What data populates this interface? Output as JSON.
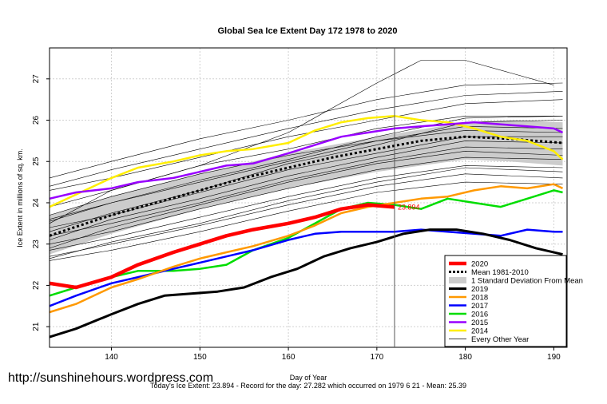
{
  "chart_data": {
    "type": "line",
    "title": "Global Sea Ice Extent Day 172 1978 to 2020",
    "xlabel": "Day of Year",
    "ylabel": "Ice Extent in millions of sq. km.",
    "xlim": [
      133,
      191.5
    ],
    "ylim": [
      20.5,
      27.75
    ],
    "x_ticks": [
      140,
      150,
      160,
      170,
      180,
      190
    ],
    "y_ticks": [
      21,
      22,
      23,
      24,
      25,
      26,
      27
    ],
    "grid": true,
    "vline_x": 172,
    "legend_position": "bottom-right",
    "current_label": "23.894",
    "watermark": "http://sunshinehours.wordpress.com",
    "footer": "Today's Ice Extent: 23.894  - Record for the day: 27.282 which occurred on 1979 6 21  - Mean: 25.39",
    "colors": {
      "2020": "#ff0000",
      "mean": "#000000",
      "band": "#cccccc",
      "2019": "#000000",
      "2018": "#ff9900",
      "2017": "#0000ff",
      "2016": "#00dd00",
      "2015": "#9900ff",
      "2014": "#ffee00",
      "other": "#000000"
    },
    "legend": [
      "2020",
      "Mean 1981-2010",
      "1 Standard Deviation From Mean",
      "2019",
      "2018",
      "2017",
      "2016",
      "2015",
      "2014",
      "Every Other Year"
    ],
    "std_band": {
      "x": [
        133,
        140,
        150,
        160,
        170,
        180,
        185,
        191
      ],
      "lower": [
        22.75,
        23.25,
        23.85,
        24.35,
        24.75,
        25.05,
        25.0,
        24.9
      ],
      "upper": [
        23.7,
        24.15,
        24.7,
        25.2,
        25.6,
        25.95,
        26.0,
        25.95
      ]
    },
    "mean": {
      "x": [
        133,
        135,
        140,
        145,
        150,
        155,
        160,
        165,
        170,
        175,
        180,
        185,
        191
      ],
      "y": [
        23.2,
        23.35,
        23.7,
        24.0,
        24.3,
        24.6,
        24.85,
        25.1,
        25.3,
        25.5,
        25.6,
        25.55,
        25.45
      ]
    },
    "series": [
      {
        "name": "2020",
        "key": "2020",
        "width": 4.5,
        "x": [
          133,
          136,
          140,
          143,
          147,
          150,
          153,
          156,
          160,
          163,
          166,
          169,
          172
        ],
        "y": [
          22.05,
          21.95,
          22.2,
          22.5,
          22.8,
          23.0,
          23.2,
          23.35,
          23.5,
          23.65,
          23.85,
          23.95,
          23.894
        ]
      },
      {
        "name": "2019",
        "key": "2019",
        "width": 3,
        "x": [
          133,
          136,
          140,
          143,
          146,
          149,
          152,
          155,
          158,
          161,
          164,
          167,
          170,
          173,
          176,
          179,
          182,
          185,
          188,
          191
        ],
        "y": [
          20.75,
          20.95,
          21.3,
          21.55,
          21.75,
          21.8,
          21.85,
          21.95,
          22.2,
          22.4,
          22.7,
          22.9,
          23.05,
          23.25,
          23.35,
          23.35,
          23.25,
          23.1,
          22.9,
          22.75
        ]
      },
      {
        "name": "2018",
        "key": "2018",
        "width": 2.5,
        "x": [
          133,
          136,
          140,
          143,
          147,
          150,
          153,
          156,
          160,
          163,
          166,
          169,
          172,
          175,
          178,
          181,
          184,
          187,
          190,
          191
        ],
        "y": [
          21.35,
          21.55,
          21.95,
          22.15,
          22.45,
          22.65,
          22.8,
          22.95,
          23.2,
          23.45,
          23.75,
          23.9,
          24.0,
          24.1,
          24.15,
          24.3,
          24.4,
          24.35,
          24.45,
          24.35
        ]
      },
      {
        "name": "2017",
        "key": "2017",
        "width": 2.5,
        "x": [
          133,
          136,
          140,
          143,
          147,
          150,
          153,
          156,
          160,
          163,
          166,
          169,
          172,
          175,
          178,
          181,
          184,
          187,
          190,
          191
        ],
        "y": [
          21.5,
          21.75,
          22.05,
          22.2,
          22.4,
          22.55,
          22.7,
          22.85,
          23.1,
          23.25,
          23.3,
          23.3,
          23.3,
          23.35,
          23.3,
          23.25,
          23.2,
          23.35,
          23.3,
          23.3
        ]
      },
      {
        "name": "2016",
        "key": "2016",
        "width": 2.5,
        "x": [
          133,
          136,
          140,
          143,
          147,
          150,
          153,
          156,
          160,
          163,
          166,
          169,
          172,
          175,
          178,
          181,
          184,
          187,
          190,
          191
        ],
        "y": [
          21.75,
          21.95,
          22.2,
          22.35,
          22.35,
          22.4,
          22.5,
          22.85,
          23.15,
          23.5,
          23.85,
          24.0,
          23.95,
          23.85,
          24.1,
          24.0,
          23.9,
          24.1,
          24.3,
          24.25
        ]
      },
      {
        "name": "2015",
        "key": "2015",
        "width": 2.5,
        "x": [
          133,
          136,
          140,
          143,
          147,
          150,
          153,
          156,
          160,
          163,
          166,
          169,
          172,
          175,
          178,
          181,
          184,
          187,
          190,
          191
        ],
        "y": [
          24.1,
          24.25,
          24.35,
          24.5,
          24.6,
          24.75,
          24.9,
          24.95,
          25.2,
          25.4,
          25.6,
          25.7,
          25.8,
          25.85,
          25.9,
          25.95,
          25.9,
          25.85,
          25.8,
          25.7
        ]
      },
      {
        "name": "2014",
        "key": "2014",
        "width": 2.5,
        "x": [
          133,
          136,
          140,
          143,
          147,
          150,
          153,
          156,
          160,
          163,
          166,
          169,
          172,
          175,
          178,
          181,
          184,
          187,
          190,
          191
        ],
        "y": [
          23.9,
          24.2,
          24.6,
          24.85,
          25.0,
          25.15,
          25.25,
          25.3,
          25.45,
          25.75,
          25.95,
          26.05,
          26.1,
          26.0,
          25.95,
          25.8,
          25.6,
          25.5,
          25.25,
          25.05
        ]
      }
    ],
    "other_years": [
      {
        "x": [
          133,
          140,
          150,
          160,
          170,
          175,
          180,
          185,
          190
        ],
        "y": [
          23.5,
          24.3,
          24.9,
          25.7,
          26.9,
          27.45,
          27.45,
          27.15,
          26.85
        ]
      },
      {
        "x": [
          133,
          140,
          150,
          160,
          170,
          180,
          191
        ],
        "y": [
          24.6,
          25.0,
          25.55,
          26.0,
          26.5,
          26.85,
          26.9
        ]
      },
      {
        "x": [
          133,
          140,
          150,
          160,
          170,
          180,
          191
        ],
        "y": [
          24.3,
          24.6,
          25.1,
          25.6,
          26.0,
          26.4,
          26.5
        ]
      },
      {
        "x": [
          133,
          140,
          150,
          160,
          170,
          180,
          191
        ],
        "y": [
          23.9,
          24.3,
          24.9,
          25.3,
          25.8,
          26.1,
          26.1
        ]
      },
      {
        "x": [
          133,
          140,
          150,
          160,
          170,
          180,
          191
        ],
        "y": [
          23.6,
          24.0,
          24.5,
          25.0,
          25.5,
          25.85,
          25.8
        ]
      },
      {
        "x": [
          133,
          140,
          150,
          160,
          170,
          180,
          191
        ],
        "y": [
          23.4,
          23.7,
          24.25,
          24.8,
          25.2,
          25.6,
          25.6
        ]
      },
      {
        "x": [
          133,
          140,
          150,
          160,
          170,
          180,
          191
        ],
        "y": [
          23.2,
          23.5,
          24.0,
          24.55,
          25.0,
          25.35,
          25.3
        ]
      },
      {
        "x": [
          133,
          140,
          150,
          160,
          170,
          180,
          191
        ],
        "y": [
          23.0,
          23.3,
          23.85,
          24.35,
          24.8,
          25.1,
          25.05
        ]
      },
      {
        "x": [
          133,
          140,
          150,
          160,
          170,
          180,
          191
        ],
        "y": [
          22.85,
          23.15,
          23.65,
          24.15,
          24.6,
          24.9,
          24.85
        ]
      },
      {
        "x": [
          133,
          140,
          150,
          160,
          170,
          180,
          191
        ],
        "y": [
          22.7,
          23.0,
          23.45,
          23.95,
          24.4,
          24.7,
          24.6
        ]
      },
      {
        "x": [
          133,
          140,
          150,
          160,
          170,
          180,
          191
        ],
        "y": [
          22.6,
          22.85,
          23.3,
          23.8,
          24.25,
          24.5,
          24.45
        ]
      },
      {
        "x": [
          133,
          140,
          150,
          160,
          170,
          180,
          191
        ],
        "y": [
          23.3,
          23.75,
          24.3,
          24.95,
          25.4,
          25.95,
          26.0
        ]
      },
      {
        "x": [
          133,
          140,
          150,
          160,
          170,
          180,
          191
        ],
        "y": [
          23.7,
          24.15,
          24.7,
          25.15,
          25.5,
          25.75,
          25.7
        ]
      },
      {
        "x": [
          133,
          140,
          150,
          160,
          170,
          180,
          191
        ],
        "y": [
          22.9,
          23.4,
          23.95,
          24.5,
          24.95,
          25.25,
          25.15
        ]
      },
      {
        "x": [
          133,
          140,
          150,
          160,
          170,
          180,
          191
        ],
        "y": [
          24.4,
          24.8,
          25.3,
          25.8,
          26.25,
          26.6,
          26.7
        ]
      },
      {
        "x": [
          133,
          140,
          150,
          160,
          170,
          180,
          191
        ],
        "y": [
          22.65,
          23.05,
          23.5,
          24.05,
          24.5,
          24.85,
          24.75
        ]
      },
      {
        "x": [
          133,
          140,
          150,
          160,
          170,
          180,
          191
        ],
        "y": [
          23.55,
          24.0,
          24.55,
          25.05,
          25.6,
          26.05,
          26.1
        ]
      },
      {
        "x": [
          133,
          140,
          150,
          160,
          170,
          180,
          191
        ],
        "y": [
          23.1,
          23.6,
          24.1,
          24.65,
          25.1,
          25.5,
          25.45
        ]
      }
    ]
  }
}
